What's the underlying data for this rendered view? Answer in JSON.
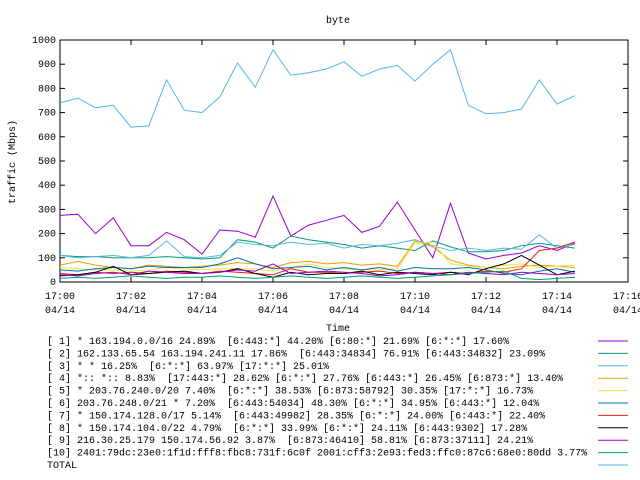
{
  "chart_data": {
    "type": "line",
    "title": "byte",
    "x_label": "Time",
    "y_label": "traffic (Mbps)",
    "xlim": [
      "17:00",
      "17:16"
    ],
    "xticks": [
      {
        "value": "17:00",
        "label": "17:00",
        "date": "04/14"
      },
      {
        "value": "17:02",
        "label": "17:02",
        "date": "04/14"
      },
      {
        "value": "17:04",
        "label": "17:04",
        "date": "04/14"
      },
      {
        "value": "17:06",
        "label": "17:06",
        "date": "04/14"
      },
      {
        "value": "17:08",
        "label": "17:08",
        "date": "04/14"
      },
      {
        "value": "17:10",
        "label": "17:10",
        "date": "04/14"
      },
      {
        "value": "17:12",
        "label": "17:12",
        "date": "04/14"
      },
      {
        "value": "17:14",
        "label": "17:14",
        "date": "04/14"
      },
      {
        "value": "17:16",
        "label": "17:16",
        "date": "04/14"
      }
    ],
    "ylim": [
      0,
      1000
    ],
    "yticks": [
      0,
      100,
      200,
      300,
      400,
      500,
      600,
      700,
      800,
      900,
      1000
    ],
    "grid": false,
    "x": [
      "17:00:00",
      "17:00:30",
      "17:01:00",
      "17:01:30",
      "17:02:00",
      "17:02:30",
      "17:03:00",
      "17:03:30",
      "17:04:00",
      "17:04:30",
      "17:05:00",
      "17:05:30",
      "17:06:00",
      "17:06:30",
      "17:07:00",
      "17:07:30",
      "17:08:00",
      "17:08:30",
      "17:09:00",
      "17:09:30",
      "17:10:00",
      "17:10:30",
      "17:11:00",
      "17:11:30",
      "17:12:00",
      "17:12:30",
      "17:13:00",
      "17:13:30",
      "17:14:00",
      "17:14:30"
    ],
    "series": [
      {
        "name": "[ 1] * 163.194.0.0/16 24.89%  [6:443:*] 44.20% [6:80:*] 21.69% [6:*:*] 17.60%",
        "color": "#9400d3",
        "values": [
          275,
          280,
          200,
          265,
          150,
          150,
          205,
          175,
          115,
          215,
          210,
          185,
          355,
          190,
          235,
          255,
          275,
          205,
          230,
          330,
          215,
          100,
          325,
          120,
          95,
          110,
          120,
          150,
          130,
          160
        ]
      },
      {
        "name": "[ 2] 162.133.65.54 163.194.241.11 17.86%  [6:443:34834] 76.91% [6:443:34832] 23.09%",
        "color": "#009e73",
        "values": [
          110,
          105,
          105,
          100,
          100,
          100,
          105,
          100,
          95,
          100,
          175,
          165,
          140,
          190,
          175,
          165,
          155,
          140,
          150,
          140,
          130,
          170,
          145,
          125,
          125,
          130,
          150,
          160,
          150,
          140
        ]
      },
      {
        "name": "[ 3] * * 16.25%  [6:*:*] 63.97% [17:*:*] 25.01%",
        "color": "#56b4e9",
        "values": [
          110,
          100,
          105,
          110,
          100,
          110,
          170,
          105,
          100,
          110,
          165,
          155,
          150,
          165,
          155,
          160,
          140,
          155,
          150,
          160,
          175,
          150,
          130,
          140,
          130,
          140,
          135,
          195,
          140,
          155
        ]
      },
      {
        "name": "[ 4] *:: *:: 8.83%  [17:443:*] 28.62% [6:*:*] 27.76% [6:443:*] 26.45% [6:873:*] 13.40%",
        "color": "#e69f00",
        "values": [
          70,
          85,
          70,
          60,
          55,
          70,
          65,
          60,
          65,
          70,
          80,
          75,
          60,
          80,
          85,
          75,
          80,
          70,
          75,
          65,
          170,
          145,
          90,
          70,
          60,
          55,
          65,
          70,
          65,
          60
        ]
      },
      {
        "name": "[ 5] * 203.76.240.0/20 7.40%  [6:*:*] 38.53% [6:873:58792] 30.35% [17:*:*] 16.73%",
        "color": "#f0e442",
        "values": [
          60,
          55,
          50,
          50,
          45,
          50,
          60,
          55,
          50,
          55,
          55,
          55,
          45,
          60,
          75,
          60,
          55,
          50,
          50,
          55,
          160,
          165,
          75,
          65,
          60,
          70,
          75,
          60,
          65,
          70
        ]
      },
      {
        "name": "[ 6] 203.76.248.0/21 * 7.20%  [6:443:54034] 48.30% [6:*:*] 34.95% [6:443:*] 12.04%",
        "color": "#0072b2",
        "values": [
          50,
          45,
          55,
          60,
          55,
          65,
          60,
          60,
          60,
          75,
          100,
          75,
          55,
          60,
          65,
          50,
          60,
          50,
          60,
          45,
          60,
          55,
          55,
          60,
          50,
          35,
          30,
          45,
          55,
          40
        ]
      },
      {
        "name": "[ 7] * 150.174.128.0/17 5.14%  [6:443:49982] 28.35% [6:*:*] 24.00% [6:443:*] 22.40%",
        "color": "#e51e10",
        "values": [
          35,
          30,
          40,
          35,
          40,
          35,
          45,
          40,
          35,
          45,
          40,
          35,
          30,
          55,
          40,
          40,
          35,
          40,
          45,
          35,
          40,
          35,
          40,
          35,
          45,
          40,
          55,
          130,
          140,
          165
        ]
      },
      {
        "name": "[ 8] * 150.174.104.0/22 4.79%  [6:*:*] 33.99% [6:*:*] 24.11% [6:443:9302] 17.28%",
        "color": "#000000",
        "values": [
          25,
          30,
          40,
          65,
          30,
          35,
          40,
          45,
          35,
          40,
          55,
          35,
          20,
          40,
          30,
          35,
          35,
          45,
          30,
          40,
          35,
          30,
          40,
          30,
          55,
          75,
          110,
          70,
          30,
          45
        ]
      },
      {
        "name": "[ 9] 216.30.25.179 150.174.56.92 3.87%  [6:873:46410] 58.81% [6:873:37111] 24.21%",
        "color": "#9400d3",
        "values": [
          30,
          25,
          35,
          40,
          30,
          45,
          40,
          35,
          35,
          40,
          50,
          45,
          75,
          35,
          40,
          45,
          40,
          35,
          25,
          30,
          40,
          35,
          30,
          40,
          35,
          30,
          40,
          35,
          30,
          35
        ]
      },
      {
        "name": "[10] 2401:79dc:23e0:1f1d:fff8:fbc8:731f:6c0f 2001:cff3:2e93:fed3:ffc0:87c6:68e0:80dd 3.77%",
        "color": "#009e73",
        "values": [
          15,
          20,
          15,
          20,
          25,
          20,
          15,
          20,
          20,
          25,
          20,
          15,
          20,
          25,
          20,
          15,
          20,
          25,
          20,
          15,
          20,
          25,
          30,
          35,
          40,
          45,
          15,
          10,
          15,
          20
        ]
      },
      {
        "name": "TOTAL",
        "color": "#56b4e9",
        "values": [
          740,
          760,
          720,
          730,
          640,
          645,
          835,
          710,
          700,
          765,
          905,
          805,
          960,
          855,
          865,
          880,
          910,
          850,
          880,
          895,
          830,
          900,
          960,
          730,
          695,
          700,
          715,
          835,
          735,
          770
        ]
      }
    ]
  }
}
